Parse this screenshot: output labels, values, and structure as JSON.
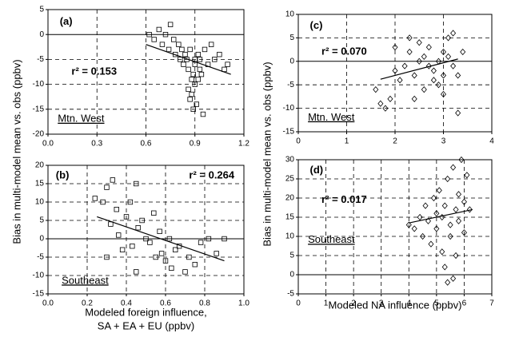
{
  "chart_data": [
    {
      "type": "scatter",
      "panel_label": "(a)",
      "annotation": "r² = 0.153",
      "region": "Mtn. West",
      "region_underline": true,
      "marker": "square",
      "ylabel": "Bias in multi-model mean vs. obs  (ppbv)",
      "xlim": [
        0,
        1.2
      ],
      "xticks": [
        {
          "value": 0,
          "label": "0.0"
        },
        0.3,
        0.6,
        0.9,
        1.2
      ],
      "ylim": [
        -20,
        5
      ],
      "yticks": [
        -20,
        -15,
        -10,
        -5,
        0,
        5
      ],
      "grid": true,
      "x": [
        0.62,
        0.65,
        0.68,
        0.7,
        0.72,
        0.74,
        0.75,
        0.77,
        0.78,
        0.8,
        0.81,
        0.82,
        0.83,
        0.84,
        0.85,
        0.86,
        0.87,
        0.88,
        0.88,
        0.89,
        0.9,
        0.9,
        0.91,
        0.92,
        0.93,
        0.94,
        0.95,
        0.96,
        0.98,
        1.0,
        1.02,
        1.05,
        1.08,
        1.1,
        0.86,
        0.87,
        0.89,
        0.9,
        0.92,
        0.93
      ],
      "values": [
        0,
        -1,
        1,
        -2,
        0,
        -3,
        2,
        -1,
        -4,
        -2,
        -5,
        -3,
        -6,
        -4,
        -5,
        -7,
        -3,
        -9,
        -12,
        -15,
        -6,
        -10,
        -14,
        -4,
        -5,
        -8,
        -16,
        -3,
        -6,
        -2,
        -5,
        -4,
        -7,
        -6,
        -11,
        -13,
        -8,
        -5,
        -9,
        -7
      ],
      "trend": {
        "x": [
          0.6,
          1.12
        ],
        "y": [
          -2,
          -8
        ]
      }
    },
    {
      "type": "scatter",
      "panel_label": "(b)",
      "annotation": "r² = 0.264",
      "region": "Southeast",
      "region_underline": true,
      "marker": "square",
      "xlabel": [
        "Modeled foreign influence,",
        "SA + EA + EU (ppbv)"
      ],
      "xlim": [
        0,
        1
      ],
      "xticks": [
        {
          "value": 0,
          "label": "0.0"
        },
        0.2,
        0.4,
        0.6,
        0.8,
        {
          "value": 1,
          "label": "1.0"
        }
      ],
      "ylim": [
        -15,
        20
      ],
      "yticks": [
        -15,
        -10,
        -5,
        0,
        5,
        10,
        15,
        20
      ],
      "grid": true,
      "x": [
        0.24,
        0.28,
        0.3,
        0.32,
        0.33,
        0.35,
        0.36,
        0.38,
        0.4,
        0.42,
        0.43,
        0.45,
        0.46,
        0.48,
        0.5,
        0.52,
        0.54,
        0.55,
        0.57,
        0.58,
        0.6,
        0.62,
        0.63,
        0.65,
        0.67,
        0.7,
        0.72,
        0.75,
        0.78,
        0.82,
        0.86,
        0.9,
        0.3,
        0.45
      ],
      "values": [
        11,
        10,
        14,
        4,
        16,
        8,
        1,
        -3,
        6,
        10,
        -2,
        15,
        3,
        5,
        0,
        -1,
        7,
        -5,
        2,
        -4,
        -6,
        0,
        -8,
        -3,
        -2,
        -9,
        -5,
        -7,
        -1,
        0,
        -4,
        0,
        -5,
        -9
      ],
      "trend": {
        "x": [
          0.25,
          0.9
        ],
        "y": [
          6,
          -6
        ]
      }
    },
    {
      "type": "scatter",
      "panel_label": "(c)",
      "annotation": "r² = 0.070",
      "region": "Mtn. West",
      "region_underline": true,
      "marker": "diamond",
      "ylabel": "Bias in multi-model mean vs. obs  (ppbv)",
      "xlim": [
        0,
        4
      ],
      "xticks": [
        0,
        1,
        2,
        3,
        4
      ],
      "ylim": [
        -15,
        10
      ],
      "yticks": [
        -15,
        -10,
        -5,
        0,
        5,
        10
      ],
      "grid": true,
      "x": [
        1.6,
        1.7,
        1.8,
        1.9,
        2.0,
        2.0,
        2.1,
        2.2,
        2.3,
        2.3,
        2.4,
        2.5,
        2.5,
        2.6,
        2.6,
        2.7,
        2.8,
        2.8,
        2.9,
        2.9,
        3.0,
        3.0,
        3.1,
        3.1,
        3.2,
        3.2,
        3.3,
        3.3,
        3.4,
        2.4,
        2.7,
        3.0
      ],
      "values": [
        -6,
        -9,
        -10,
        -8,
        -2,
        3,
        -4,
        -1,
        2,
        5,
        -3,
        4,
        0,
        -6,
        1,
        3,
        -2,
        -4,
        -5,
        0,
        2,
        -7,
        5,
        1,
        -1,
        6,
        -3,
        -11,
        2,
        -8,
        -1,
        -3
      ],
      "trend": {
        "x": [
          1.7,
          3.3
        ],
        "y": [
          -3.8,
          0.5
        ]
      }
    },
    {
      "type": "scatter",
      "panel_label": "(d)",
      "annotation": "r² = 0.017",
      "region": "Southeast",
      "region_underline": true,
      "marker": "diamond",
      "xlabel": [
        "Modeled NA influence  (ppbv)"
      ],
      "xlim": [
        0,
        7
      ],
      "xticks": [
        0,
        1,
        2,
        3,
        4,
        5,
        6,
        7
      ],
      "ylim": [
        -5,
        30
      ],
      "yticks": [
        -5,
        0,
        5,
        10,
        15,
        20,
        25,
        30
      ],
      "grid": true,
      "x": [
        4.0,
        4.2,
        4.4,
        4.5,
        4.6,
        4.7,
        4.8,
        4.9,
        5.0,
        5.0,
        5.1,
        5.2,
        5.2,
        5.3,
        5.4,
        5.4,
        5.5,
        5.5,
        5.6,
        5.7,
        5.7,
        5.8,
        5.8,
        5.9,
        6.0,
        6.0,
        6.1,
        6.2,
        5.3,
        5.6
      ],
      "values": [
        13,
        12,
        15,
        10,
        18,
        14,
        8,
        20,
        16,
        12,
        22,
        6,
        15,
        18,
        -2,
        25,
        13,
        10,
        28,
        17,
        5,
        21,
        14,
        30,
        19,
        11,
        26,
        17,
        2,
        -1
      ],
      "trend": {
        "x": [
          4.0,
          6.3
        ],
        "y": [
          13.5,
          17
        ]
      }
    }
  ]
}
